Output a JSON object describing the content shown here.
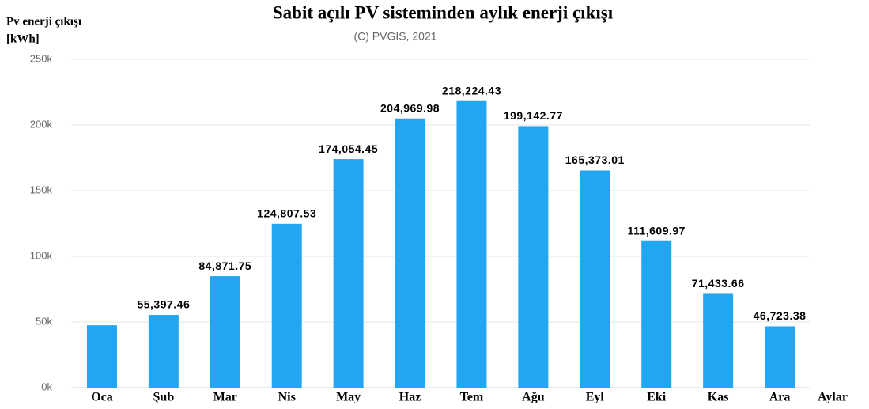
{
  "chart_data": {
    "type": "bar",
    "title": "Sabit açılı PV sisteminden aylık enerji çıkışı",
    "subtitle": "(C) PVGIS, 2021",
    "y_label": [
      "Pv enerji çıkışı",
      "[kWh]"
    ],
    "x_label": "Aylar",
    "categories": [
      "Oca",
      "Şub",
      "Mar",
      "Nis",
      "May",
      "Haz",
      "Tem",
      "Ağu",
      "Eyl",
      "Eki",
      "Kas",
      "Ara"
    ],
    "values": [
      47500,
      55397.46,
      84871.75,
      124807.53,
      174054.45,
      204969.98,
      218224.43,
      199142.77,
      165373.01,
      111609.97,
      71433.66,
      46723.38
    ],
    "value_labels": [
      null,
      "55,397.46",
      "84,871.75",
      "124,807.53",
      "174,054.45",
      "204,969.98",
      "218,224.43",
      "199,142.77",
      "165,373.01",
      "111,609.97",
      "71,433.66",
      "46,723.38"
    ],
    "color": "#22a6f2",
    "ylim": [
      0,
      250000
    ],
    "yticks": [
      {
        "value": 0,
        "label": "0k"
      },
      {
        "value": 50000,
        "label": "50k"
      },
      {
        "value": 100000,
        "label": "100k"
      },
      {
        "value": 150000,
        "label": "150k"
      },
      {
        "value": 200000,
        "label": "200k"
      },
      {
        "value": 250000,
        "label": "250k"
      }
    ],
    "grid": true
  }
}
